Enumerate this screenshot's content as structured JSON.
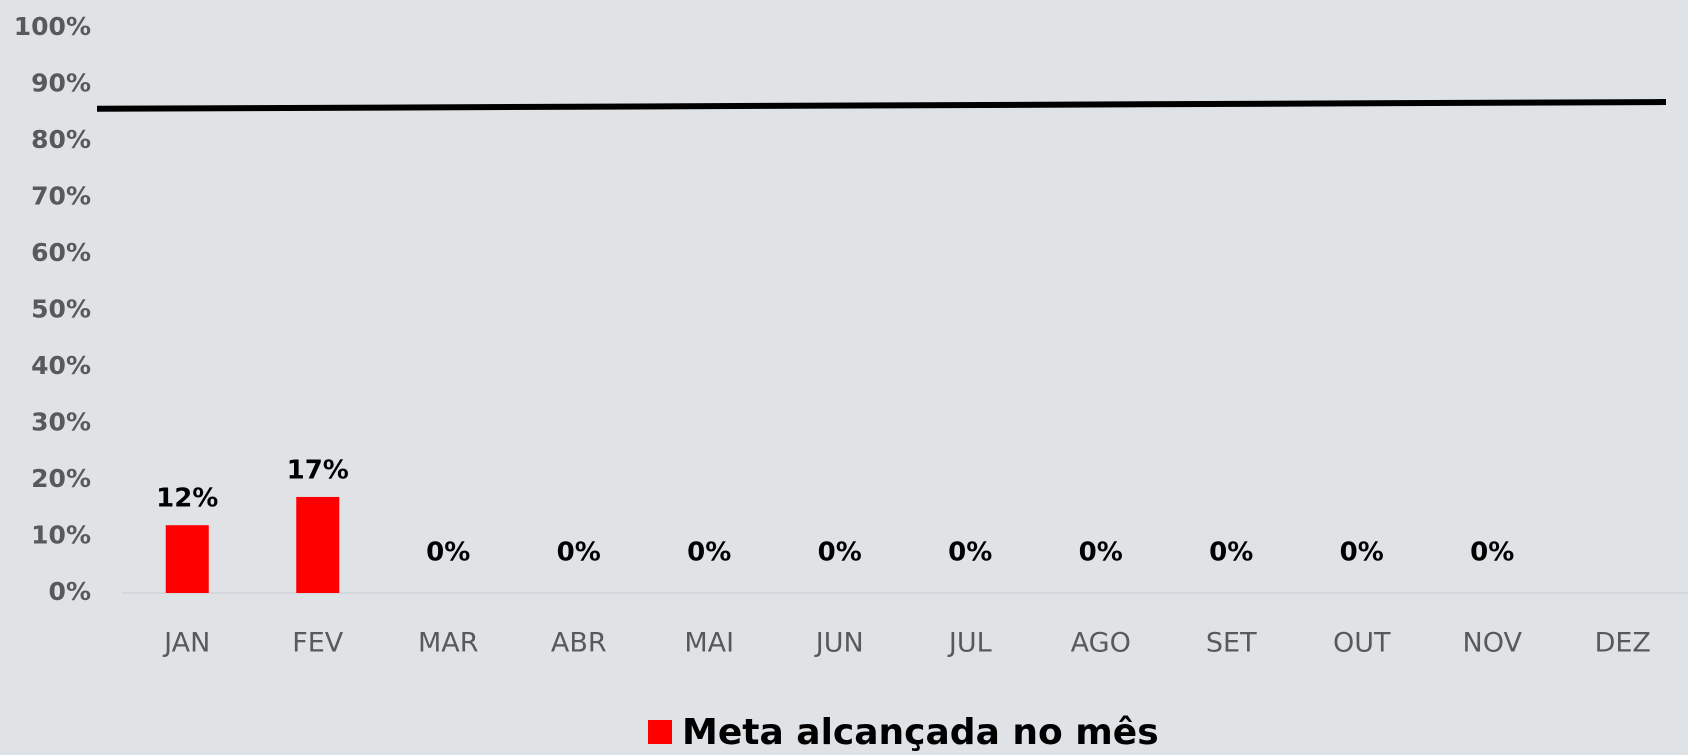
{
  "chart_data": {
    "type": "bar",
    "categories": [
      "JAN",
      "FEV",
      "MAR",
      "ABR",
      "MAI",
      "JUN",
      "JUL",
      "AGO",
      "SET",
      "OUT",
      "NOV",
      "DEZ"
    ],
    "series": [
      {
        "name": "Meta alcançada no mês",
        "color": "#ff0000",
        "values": [
          12,
          17,
          0,
          0,
          0,
          0,
          0,
          0,
          0,
          0,
          0,
          null
        ],
        "value_labels": [
          "12%",
          "17%",
          "0%",
          "0%",
          "0%",
          "0%",
          "0%",
          "0%",
          "0%",
          "0%",
          "0%",
          null
        ]
      }
    ],
    "target_line": {
      "color": "#000000",
      "values": [
        85.7,
        86.9
      ]
    },
    "ylim": [
      0,
      100
    ],
    "yticks": [
      {
        "value": 0,
        "label": "0%"
      },
      {
        "value": 10,
        "label": "10%"
      },
      {
        "value": 20,
        "label": "20%"
      },
      {
        "value": 30,
        "label": "30%"
      },
      {
        "value": 40,
        "label": "40%"
      },
      {
        "value": 50,
        "label": "50%"
      },
      {
        "value": 60,
        "label": "60%"
      },
      {
        "value": 70,
        "label": "70%"
      },
      {
        "value": 80,
        "label": "80%"
      },
      {
        "value": 90,
        "label": "90%"
      },
      {
        "value": 100,
        "label": "100%"
      }
    ],
    "grid": false,
    "legend": "bottom"
  }
}
